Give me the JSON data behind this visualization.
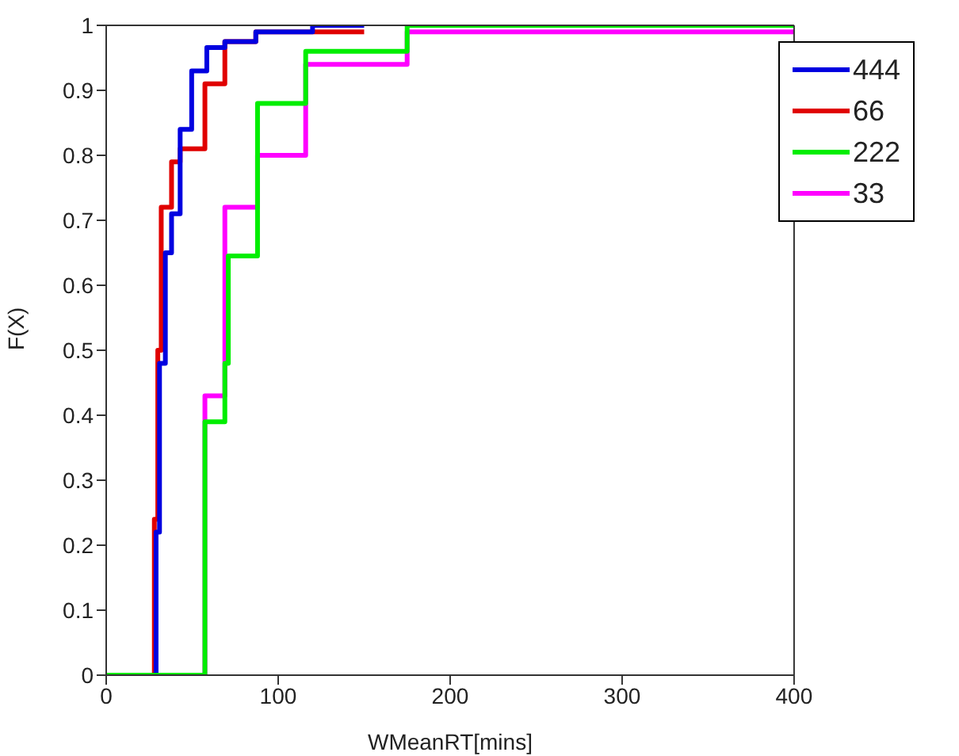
{
  "chart_data": {
    "type": "step",
    "xlabel": "WMeanRT[mins]",
    "ylabel": "F(X)",
    "xlim": [
      0,
      400
    ],
    "xticks": [
      0,
      100,
      200,
      300,
      400
    ],
    "ylim": [
      0,
      1
    ],
    "yticks": [
      0,
      0.1,
      0.2,
      0.3,
      0.4,
      0.5,
      0.6,
      0.7,
      0.8,
      0.9,
      1
    ],
    "grid": false,
    "legend": "top right",
    "series": [
      {
        "name": "444",
        "color": "#0000e0",
        "x": [
          0,
          29,
          31,
          34.4,
          38,
          43,
          49.7,
          58.5,
          69,
          87,
          120,
          150
        ],
        "values": [
          0,
          0.22,
          0.48,
          0.65,
          0.71,
          0.84,
          0.93,
          0.966,
          0.975,
          0.99,
          1,
          1
        ]
      },
      {
        "name": "66",
        "color": "#e00000",
        "x": [
          0,
          28,
          30,
          32,
          38,
          43,
          57.4,
          69,
          87,
          150
        ],
        "values": [
          0,
          0.24,
          0.5,
          0.72,
          0.79,
          0.81,
          0.91,
          0.975,
          0.99,
          0.99
        ]
      },
      {
        "name": "222",
        "color": "#00ee00",
        "x": [
          0,
          57.4,
          69,
          71,
          88,
          116,
          175,
          400
        ],
        "values": [
          0,
          0.39,
          0.48,
          0.645,
          0.88,
          0.96,
          1,
          1
        ]
      },
      {
        "name": "33",
        "color": "#ff00ff",
        "x": [
          0,
          57.4,
          69,
          88,
          116,
          175,
          400
        ],
        "values": [
          0,
          0.43,
          0.72,
          0.8,
          0.94,
          0.99,
          0.99
        ]
      }
    ]
  }
}
